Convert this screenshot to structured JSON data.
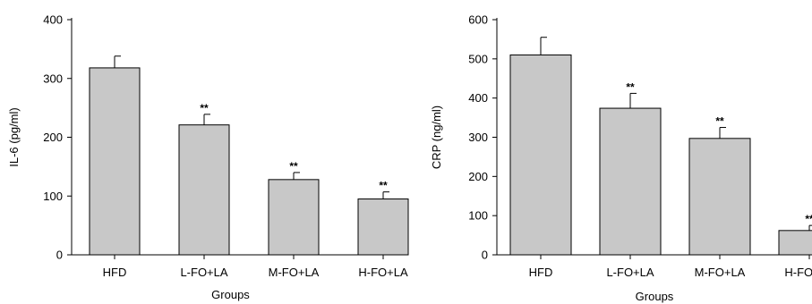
{
  "chart_data": [
    {
      "type": "bar",
      "xlabel": "Groups",
      "ylabel": "IL-6 (pg/ml)",
      "categories": [
        "HFD",
        "L-FO+LA",
        "M-FO+LA",
        "H-FO+LA"
      ],
      "values": [
        318,
        221,
        128,
        95
      ],
      "errors": [
        20,
        18,
        12,
        12
      ],
      "annotations": [
        "",
        "**",
        "**",
        "**"
      ],
      "ylim": [
        0,
        400
      ],
      "yticks": [
        0,
        100,
        200,
        300,
        400
      ],
      "ytick_labels": [
        "0",
        "100",
        "200",
        "300",
        "400"
      ],
      "bar_color": "#c8c8c8",
      "grid": false
    },
    {
      "type": "bar",
      "xlabel": "Groups",
      "ylabel": "CRP (ng/ml)",
      "categories": [
        "HFD",
        "L-FO+LA",
        "M-FO+LA",
        "H-FO+LA"
      ],
      "values": [
        510,
        374,
        297,
        62
      ],
      "errors": [
        45,
        38,
        28,
        13
      ],
      "annotations": [
        "",
        "**",
        "**",
        "**"
      ],
      "ylim": [
        0,
        600
      ],
      "yticks": [
        0,
        100,
        200,
        300,
        400,
        500,
        600
      ],
      "ytick_labels": [
        "0",
        "100",
        "200",
        "300",
        "400",
        "500",
        "600"
      ],
      "bar_color": "#c8c8c8",
      "grid": false
    }
  ]
}
